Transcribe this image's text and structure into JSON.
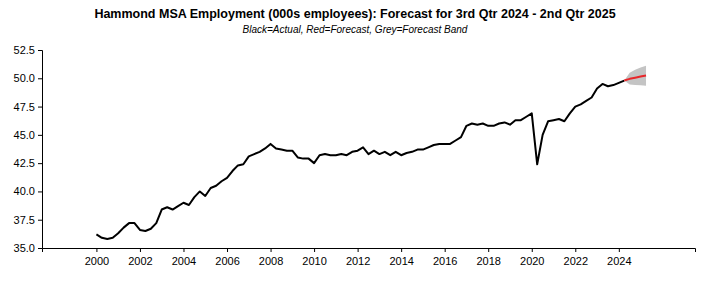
{
  "chart_data": {
    "type": "line",
    "title": "Hammond MSA Employment (000s employees): Forecast for 3rd Qtr 2024 - 2nd Qtr 2025",
    "subtitle": "Black=Actual, Red=Forecast, Grey=Forecast Band",
    "x": [
      2000,
      2000.25,
      2000.5,
      2000.75,
      2001,
      2001.25,
      2001.5,
      2001.75,
      2002,
      2002.25,
      2002.5,
      2002.75,
      2003,
      2003.25,
      2003.5,
      2003.75,
      2004,
      2004.25,
      2004.5,
      2004.75,
      2005,
      2005.25,
      2005.5,
      2005.75,
      2006,
      2006.25,
      2006.5,
      2006.75,
      2007,
      2007.25,
      2007.5,
      2007.75,
      2008,
      2008.25,
      2008.5,
      2008.75,
      2009,
      2009.25,
      2009.5,
      2009.75,
      2010,
      2010.25,
      2010.5,
      2010.75,
      2011,
      2011.25,
      2011.5,
      2011.75,
      2012,
      2012.25,
      2012.5,
      2012.75,
      2013,
      2013.25,
      2013.5,
      2013.75,
      2014,
      2014.25,
      2014.5,
      2014.75,
      2015,
      2015.25,
      2015.5,
      2015.75,
      2016,
      2016.25,
      2016.5,
      2016.75,
      2017,
      2017.25,
      2017.5,
      2017.75,
      2018,
      2018.25,
      2018.5,
      2018.75,
      2019,
      2019.25,
      2019.5,
      2019.75,
      2020,
      2020.25,
      2020.5,
      2020.75,
      2021,
      2021.25,
      2021.5,
      2021.75,
      2022,
      2022.25,
      2022.5,
      2022.75,
      2023,
      2023.25,
      2023.5,
      2023.75,
      2024,
      2024.25,
      2024.5,
      2024.75,
      2025,
      2025.25
    ],
    "series": [
      {
        "type": "line",
        "color": "#000000",
        "values": [
          36.2,
          35.9,
          35.8,
          35.9,
          36.3,
          36.8,
          37.2,
          37.2,
          36.6,
          36.5,
          36.7,
          37.2,
          38.4,
          38.6,
          38.4,
          38.7,
          39.0,
          38.8,
          39.5,
          40.0,
          39.6,
          40.3,
          40.5,
          40.9,
          41.2,
          41.8,
          42.3,
          42.4,
          43.1,
          43.3,
          43.5,
          43.8,
          44.2,
          43.8,
          43.7,
          43.6,
          43.6,
          43.0,
          42.9,
          42.9,
          42.5,
          43.2,
          43.3,
          43.2,
          43.2,
          43.3,
          43.2,
          43.5,
          43.6,
          43.9,
          43.3,
          43.6,
          43.3,
          43.5,
          43.2,
          43.5,
          43.2,
          43.4,
          43.5,
          43.7,
          43.7,
          43.9,
          44.1,
          44.2,
          44.2,
          44.2,
          44.5,
          44.8,
          45.8,
          46.0,
          45.9,
          46.0,
          45.8,
          45.8,
          46.0,
          46.1,
          45.9,
          46.3,
          46.3,
          46.6,
          46.9,
          42.4,
          45.0,
          46.2,
          46.3,
          46.4,
          46.2,
          46.9,
          47.5,
          47.7,
          48.0,
          48.3,
          49.1,
          49.5,
          49.3,
          49.4,
          49.6,
          49.8,
          null,
          null,
          null,
          null
        ]
      },
      {
        "type": "line",
        "color": "#e8262a",
        "values": [
          null,
          null,
          null,
          null,
          null,
          null,
          null,
          null,
          null,
          null,
          null,
          null,
          null,
          null,
          null,
          null,
          null,
          null,
          null,
          null,
          null,
          null,
          null,
          null,
          null,
          null,
          null,
          null,
          null,
          null,
          null,
          null,
          null,
          null,
          null,
          null,
          null,
          null,
          null,
          null,
          null,
          null,
          null,
          null,
          null,
          null,
          null,
          null,
          null,
          null,
          null,
          null,
          null,
          null,
          null,
          null,
          null,
          null,
          null,
          null,
          null,
          null,
          null,
          null,
          null,
          null,
          null,
          null,
          null,
          null,
          null,
          null,
          null,
          null,
          null,
          null,
          null,
          null,
          null,
          null,
          null,
          null,
          null,
          null,
          null,
          null,
          null,
          null,
          null,
          null,
          null,
          null,
          null,
          null,
          null,
          null,
          null,
          49.8,
          49.95,
          50.05,
          50.15,
          50.25
        ]
      },
      {
        "type": "band",
        "color": "#c4c4c4",
        "lower": [
          null,
          null,
          null,
          null,
          null,
          null,
          null,
          null,
          null,
          null,
          null,
          null,
          null,
          null,
          null,
          null,
          null,
          null,
          null,
          null,
          null,
          null,
          null,
          null,
          null,
          null,
          null,
          null,
          null,
          null,
          null,
          null,
          null,
          null,
          null,
          null,
          null,
          null,
          null,
          null,
          null,
          null,
          null,
          null,
          null,
          null,
          null,
          null,
          null,
          null,
          null,
          null,
          null,
          null,
          null,
          null,
          null,
          null,
          null,
          null,
          null,
          null,
          null,
          null,
          null,
          null,
          null,
          null,
          null,
          null,
          null,
          null,
          null,
          null,
          null,
          null,
          null,
          null,
          null,
          null,
          null,
          null,
          null,
          null,
          null,
          null,
          null,
          null,
          null,
          null,
          null,
          null,
          null,
          null,
          null,
          null,
          null,
          49.8,
          49.45,
          49.4,
          49.38,
          49.35
        ],
        "upper": [
          null,
          null,
          null,
          null,
          null,
          null,
          null,
          null,
          null,
          null,
          null,
          null,
          null,
          null,
          null,
          null,
          null,
          null,
          null,
          null,
          null,
          null,
          null,
          null,
          null,
          null,
          null,
          null,
          null,
          null,
          null,
          null,
          null,
          null,
          null,
          null,
          null,
          null,
          null,
          null,
          null,
          null,
          null,
          null,
          null,
          null,
          null,
          null,
          null,
          null,
          null,
          null,
          null,
          null,
          null,
          null,
          null,
          null,
          null,
          null,
          null,
          null,
          null,
          null,
          null,
          null,
          null,
          null,
          null,
          null,
          null,
          null,
          null,
          null,
          null,
          null,
          null,
          null,
          null,
          null,
          null,
          null,
          null,
          null,
          null,
          null,
          null,
          null,
          null,
          null,
          null,
          null,
          null,
          null,
          null,
          null,
          null,
          49.8,
          50.5,
          50.75,
          50.95,
          51.1
        ]
      }
    ],
    "xlim": [
      1997.5,
      2027.5
    ],
    "xticks": [
      2000,
      2002,
      2004,
      2006,
      2008,
      2010,
      2012,
      2014,
      2016,
      2018,
      2020,
      2022,
      2024
    ],
    "ylim": [
      35,
      52.5
    ],
    "yticks": [
      {
        "value": 35,
        "label": "35.0"
      },
      {
        "value": 37.5,
        "label": "37.5"
      },
      {
        "value": 40,
        "label": "40.0"
      },
      {
        "value": 42.5,
        "label": "42.5"
      },
      {
        "value": 45,
        "label": "45.0"
      },
      {
        "value": 47.5,
        "label": "47.5"
      },
      {
        "value": 50,
        "label": "50.0"
      },
      {
        "value": 52.5,
        "label": "52.5"
      }
    ],
    "grid": false
  }
}
